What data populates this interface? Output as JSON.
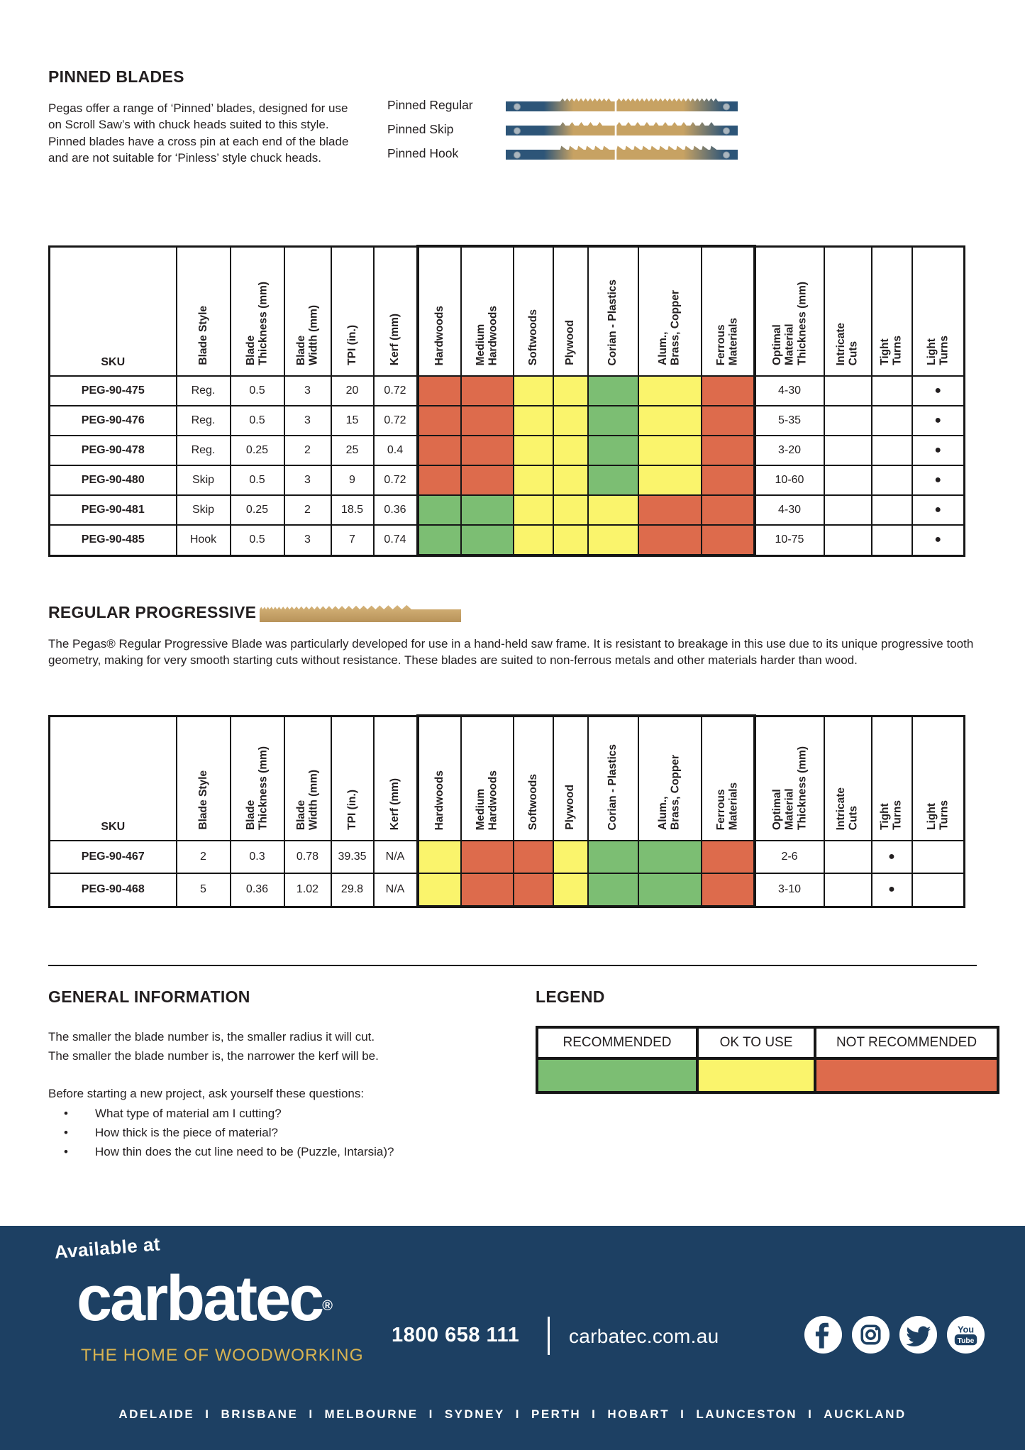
{
  "pinned": {
    "title": "PINNED BLADES",
    "description": "Pegas offer a range of ‘Pinned’ blades, designed for use on Scroll Saw’s with chuck heads suited to this style. Pinned blades have a cross pin at each end of the blade and are not suitable for ‘Pinless’ style chuck heads.",
    "blades": [
      {
        "label": "Pinned Regular",
        "style": "regular"
      },
      {
        "label": "Pinned Skip",
        "style": "skip"
      },
      {
        "label": "Pinned Hook",
        "style": "hook"
      }
    ]
  },
  "table_columns": [
    {
      "label": "SKU"
    },
    {
      "label": "Blade Style"
    },
    {
      "label": "Blade\nThickness (mm)"
    },
    {
      "label": "Blade\nWidth (mm)"
    },
    {
      "label": "TPI (in.)"
    },
    {
      "label": "Kerf (mm)"
    },
    {
      "label": "Hardwoods",
      "group": true
    },
    {
      "label": "Medium\nHardwoods",
      "group": true
    },
    {
      "label": "Softwoods",
      "group": true
    },
    {
      "label": "Plywood",
      "group": true
    },
    {
      "label": "Corian  - Plastics",
      "group": true
    },
    {
      "label": "Alum.,\nBrass, Copper",
      "group": true
    },
    {
      "label": "Ferrous\nMaterials",
      "group": true
    },
    {
      "label": "Optimal\nMaterial\nThickness (mm)"
    },
    {
      "label": "Intricate\nCuts"
    },
    {
      "label": "Tight\nTurns"
    },
    {
      "label": "Light\nTurns"
    }
  ],
  "rating_names": [
    "hardwoods",
    "medium-hardwoods",
    "softwoods",
    "plywood",
    "corian-plastics",
    "alum-brass-copper",
    "ferrous-materials"
  ],
  "pinned_table": {
    "rows": [
      {
        "sku": "PEG-90-475",
        "blade_style": "Reg.",
        "thickness_mm": "0.5",
        "width_mm": "3",
        "tpi": "20",
        "kerf_mm": "0.72",
        "ratings": [
          "R",
          "R",
          "Y",
          "Y",
          "G",
          "Y",
          "R"
        ],
        "optimal_mm": "4-30",
        "intricate_cuts": "",
        "tight_turns": "",
        "light_turns": "●"
      },
      {
        "sku": "PEG-90-476",
        "blade_style": "Reg.",
        "thickness_mm": "0.5",
        "width_mm": "3",
        "tpi": "15",
        "kerf_mm": "0.72",
        "ratings": [
          "R",
          "R",
          "Y",
          "Y",
          "G",
          "Y",
          "R"
        ],
        "optimal_mm": "5-35",
        "intricate_cuts": "",
        "tight_turns": "",
        "light_turns": "●"
      },
      {
        "sku": "PEG-90-478",
        "blade_style": "Reg.",
        "thickness_mm": "0.25",
        "width_mm": "2",
        "tpi": "25",
        "kerf_mm": "0.4",
        "ratings": [
          "R",
          "R",
          "Y",
          "Y",
          "G",
          "Y",
          "R"
        ],
        "optimal_mm": "3-20",
        "intricate_cuts": "",
        "tight_turns": "",
        "light_turns": "●"
      },
      {
        "sku": "PEG-90-480",
        "blade_style": "Skip",
        "thickness_mm": "0.5",
        "width_mm": "3",
        "tpi": "9",
        "kerf_mm": "0.72",
        "ratings": [
          "R",
          "R",
          "Y",
          "Y",
          "G",
          "Y",
          "R"
        ],
        "optimal_mm": "10-60",
        "intricate_cuts": "",
        "tight_turns": "",
        "light_turns": "●"
      },
      {
        "sku": "PEG-90-481",
        "blade_style": "Skip",
        "thickness_mm": "0.25",
        "width_mm": "2",
        "tpi": "18.5",
        "kerf_mm": "0.36",
        "ratings": [
          "G",
          "G",
          "Y",
          "Y",
          "Y",
          "R",
          "R"
        ],
        "optimal_mm": "4-30",
        "intricate_cuts": "",
        "tight_turns": "",
        "light_turns": "●"
      },
      {
        "sku": "PEG-90-485",
        "blade_style": "Hook",
        "thickness_mm": "0.5",
        "width_mm": "3",
        "tpi": "7",
        "kerf_mm": "0.74",
        "ratings": [
          "G",
          "G",
          "Y",
          "Y",
          "Y",
          "R",
          "R"
        ],
        "optimal_mm": "10-75",
        "intricate_cuts": "",
        "tight_turns": "",
        "light_turns": "●"
      }
    ]
  },
  "progressive": {
    "title": "REGULAR PROGRESSIVE",
    "description": "The Pegas® Regular Progressive Blade was particularly developed for use in a hand-held saw frame. It is resistant to breakage in this use due to its unique progressive tooth geometry, making for very smooth starting cuts without resistance. These blades are suited to non-ferrous metals and other materials harder than wood."
  },
  "progressive_table": {
    "rows": [
      {
        "sku": "PEG-90-467",
        "blade_style": "2",
        "thickness_mm": "0.3",
        "width_mm": "0.78",
        "tpi": "39.35",
        "kerf_mm": "N/A",
        "ratings": [
          "Y",
          "R",
          "R",
          "Y",
          "G",
          "G",
          "R"
        ],
        "optimal_mm": "2-6",
        "intricate_cuts": "",
        "tight_turns": "●",
        "light_turns": ""
      },
      {
        "sku": "PEG-90-468",
        "blade_style": "5",
        "thickness_mm": "0.36",
        "width_mm": "1.02",
        "tpi": "29.8",
        "kerf_mm": "N/A",
        "ratings": [
          "Y",
          "R",
          "R",
          "Y",
          "G",
          "G",
          "R"
        ],
        "optimal_mm": "3-10",
        "intricate_cuts": "",
        "tight_turns": "●",
        "light_turns": ""
      }
    ]
  },
  "general_info": {
    "title": "GENERAL INFORMATION",
    "lines": [
      "The smaller the blade number is, the smaller radius it will cut.",
      "The smaller the blade number is, the narrower the kerf will be."
    ],
    "question_intro": "Before starting a new project, ask yourself these questions:",
    "questions": [
      "What type of material am I cutting?",
      "How thick is the piece of material?",
      "How thin does the cut line need to be (Puzzle, Intarsia)?"
    ]
  },
  "legend": {
    "title": "LEGEND",
    "items": [
      {
        "label": "RECOMMENDED",
        "key": "G"
      },
      {
        "label": "OK TO USE",
        "key": "Y"
      },
      {
        "label": "NOT RECOMMENDED",
        "key": "R"
      }
    ]
  },
  "colors": {
    "G": "#7cbe73",
    "Y": "#faf46c",
    "R": "#dd6b4c",
    "footer_navy": "#1d4063",
    "gold": "#d8b351",
    "blade_navy": "#2d5578",
    "blade_tan": "#c7a263"
  },
  "footer": {
    "available_at": "Available at",
    "brand": "carbatec",
    "reg": "®",
    "tagline": "THE HOME OF WOODWORKING",
    "phone": "1800 658 111",
    "website": "carbatec.com.au",
    "social": [
      "facebook",
      "instagram",
      "twitter",
      "youtube"
    ],
    "cities": [
      "ADELAIDE",
      "BRISBANE",
      "MELBOURNE",
      "SYDNEY",
      "PERTH",
      "HOBART",
      "LAUNCESTON",
      "AUCKLAND"
    ],
    "city_separator": "I"
  }
}
